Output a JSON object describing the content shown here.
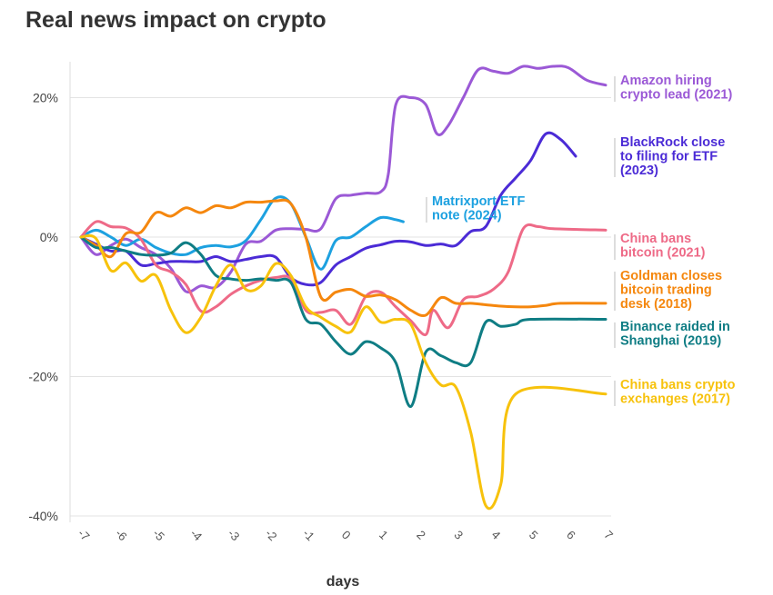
{
  "title": "Real news impact on crypto",
  "chart_data": {
    "type": "line",
    "title": "Real news impact on crypto",
    "xlabel": "days",
    "ylabel": "",
    "xlim": [
      -7,
      7
    ],
    "ylim": [
      -40,
      25
    ],
    "x_ticks": [
      -7,
      -6,
      -5,
      -4,
      -3,
      -2,
      -1,
      0,
      1,
      2,
      3,
      4,
      5,
      6,
      7
    ],
    "y_ticks": [
      20,
      0,
      -20,
      -40
    ],
    "y_tick_labels": [
      "20%",
      "0%",
      "-20%",
      "-40%"
    ],
    "grid": "horizontal",
    "legend": "direct labels at line ends",
    "series": [
      {
        "name": "Amazon hiring crypto lead (2021)",
        "label_lines": [
          "Amazon hiring",
          "crypto lead (2021)"
        ],
        "color": "#9b59d6",
        "points": [
          [
            -7,
            0
          ],
          [
            -6.6,
            -2.5
          ],
          [
            -6.2,
            -1.2
          ],
          [
            -5.8,
            -0.3
          ],
          [
            -5.4,
            -1.5
          ],
          [
            -5,
            -2.5
          ],
          [
            -4.6,
            -4.5
          ],
          [
            -4.2,
            -7.8
          ],
          [
            -3.8,
            -7
          ],
          [
            -3.4,
            -7.2
          ],
          [
            -3,
            -5
          ],
          [
            -2.6,
            -1
          ],
          [
            -2.2,
            -0.6
          ],
          [
            -1.8,
            1
          ],
          [
            -1.4,
            1.2
          ],
          [
            -1,
            1.1
          ],
          [
            -0.6,
            1.2
          ],
          [
            -0.2,
            5.5
          ],
          [
            0.2,
            6
          ],
          [
            0.6,
            6.3
          ],
          [
            1,
            6.5
          ],
          [
            1.2,
            9
          ],
          [
            1.4,
            19
          ],
          [
            1.8,
            20
          ],
          [
            2.2,
            19
          ],
          [
            2.5,
            14.8
          ],
          [
            2.8,
            16
          ],
          [
            3.2,
            20
          ],
          [
            3.6,
            24
          ],
          [
            4,
            23.8
          ],
          [
            4.4,
            23.5
          ],
          [
            4.8,
            24.5
          ],
          [
            5.2,
            24.2
          ],
          [
            5.6,
            24.5
          ],
          [
            6,
            24.3
          ],
          [
            6.5,
            22.5
          ],
          [
            7,
            21.8
          ]
        ]
      },
      {
        "name": "BlackRock close to filing for ETF (2023)",
        "label_lines": [
          "BlackRock close",
          "to filing for ETF",
          "(2023)"
        ],
        "color": "#4b2bd6",
        "points": [
          [
            -7,
            0
          ],
          [
            -6.6,
            -1
          ],
          [
            -6.2,
            -2
          ],
          [
            -5.8,
            -2
          ],
          [
            -5.4,
            -4
          ],
          [
            -5,
            -3.8
          ],
          [
            -4.6,
            -3.5
          ],
          [
            -4.2,
            -3.5
          ],
          [
            -3.8,
            -3.5
          ],
          [
            -3.4,
            -2.8
          ],
          [
            -3,
            -3.5
          ],
          [
            -2.6,
            -3.2
          ],
          [
            -2.2,
            -2.8
          ],
          [
            -1.8,
            -2.9
          ],
          [
            -1.4,
            -5.8
          ],
          [
            -1,
            -6.8
          ],
          [
            -0.6,
            -6.5
          ],
          [
            -0.2,
            -4
          ],
          [
            0.2,
            -2.8
          ],
          [
            0.6,
            -1.6
          ],
          [
            1,
            -1.1
          ],
          [
            1.4,
            -0.6
          ],
          [
            1.8,
            -0.7
          ],
          [
            2.2,
            -1.2
          ],
          [
            2.6,
            -1
          ],
          [
            3,
            -1.2
          ],
          [
            3.4,
            0.8
          ],
          [
            3.8,
            1.5
          ],
          [
            4.2,
            6
          ],
          [
            4.6,
            8.5
          ],
          [
            5,
            11
          ],
          [
            5.4,
            14.8
          ],
          [
            5.8,
            14
          ],
          [
            6.2,
            11.6
          ]
        ]
      },
      {
        "name": "Matrixport ETF note (2024)",
        "label_lines": [
          "Matrixport ETF",
          "note (2024)"
        ],
        "color": "#1da1e0",
        "points": [
          [
            -7,
            0
          ],
          [
            -6.6,
            1
          ],
          [
            -6.2,
            0
          ],
          [
            -5.8,
            -1.2
          ],
          [
            -5.4,
            -0.3
          ],
          [
            -5,
            -1.5
          ],
          [
            -4.6,
            -2.3
          ],
          [
            -4.2,
            -2.5
          ],
          [
            -3.8,
            -1.5
          ],
          [
            -3.4,
            -1.2
          ],
          [
            -3,
            -1.4
          ],
          [
            -2.6,
            -0.5
          ],
          [
            -2.2,
            2.5
          ],
          [
            -1.8,
            5.6
          ],
          [
            -1.4,
            4.8
          ],
          [
            -1,
            0
          ],
          [
            -0.6,
            -4.6
          ],
          [
            -0.2,
            -0.5
          ],
          [
            0.2,
            0
          ],
          [
            0.6,
            1.5
          ],
          [
            1,
            2.8
          ],
          [
            1.4,
            2.5
          ],
          [
            1.6,
            2.2
          ]
        ]
      },
      {
        "name": "China bans bitcoin (2021)",
        "label_lines": [
          "China bans",
          "bitcoin (2021)"
        ],
        "color": "#ee6a87",
        "points": [
          [
            -7,
            0
          ],
          [
            -6.6,
            2.2
          ],
          [
            -6.2,
            1.5
          ],
          [
            -5.8,
            1.3
          ],
          [
            -5.4,
            -0.3
          ],
          [
            -5,
            -4
          ],
          [
            -4.6,
            -5
          ],
          [
            -4.2,
            -6.8
          ],
          [
            -3.8,
            -10.6
          ],
          [
            -3.4,
            -10
          ],
          [
            -3,
            -8.2
          ],
          [
            -2.6,
            -7
          ],
          [
            -2.2,
            -6.2
          ],
          [
            -1.8,
            -5.8
          ],
          [
            -1.4,
            -6
          ],
          [
            -1,
            -10.5
          ],
          [
            -0.6,
            -10.8
          ],
          [
            -0.2,
            -10.5
          ],
          [
            0.2,
            -12.5
          ],
          [
            0.6,
            -8.5
          ],
          [
            1,
            -7.9
          ],
          [
            1.4,
            -10
          ],
          [
            1.8,
            -12
          ],
          [
            2.2,
            -14
          ],
          [
            2.4,
            -10.5
          ],
          [
            2.8,
            -13
          ],
          [
            3.2,
            -9
          ],
          [
            3.6,
            -8.5
          ],
          [
            4,
            -7.5
          ],
          [
            4.4,
            -5
          ],
          [
            4.8,
            1.2
          ],
          [
            5.2,
            1.5
          ],
          [
            5.6,
            1.2
          ],
          [
            7,
            1
          ]
        ]
      },
      {
        "name": "Goldman closes bitcoin trading desk (2018)",
        "label_lines": [
          "Goldman closes",
          "bitcoin trading",
          "desk (2018)"
        ],
        "color": "#f5870e",
        "points": [
          [
            -7,
            0
          ],
          [
            -6.6,
            -1.2
          ],
          [
            -6.2,
            -2.8
          ],
          [
            -5.8,
            0.5
          ],
          [
            -5.4,
            0.7
          ],
          [
            -5,
            3.5
          ],
          [
            -4.6,
            3
          ],
          [
            -4.2,
            4.2
          ],
          [
            -3.8,
            3.5
          ],
          [
            -3.4,
            4.5
          ],
          [
            -3,
            4.2
          ],
          [
            -2.6,
            5
          ],
          [
            -2.2,
            5
          ],
          [
            -1.8,
            5.2
          ],
          [
            -1.4,
            4.8
          ],
          [
            -1,
            0
          ],
          [
            -0.6,
            -8.6
          ],
          [
            -0.2,
            -7.9
          ],
          [
            0.2,
            -7.5
          ],
          [
            0.6,
            -8.5
          ],
          [
            1,
            -8.3
          ],
          [
            1.4,
            -9
          ],
          [
            1.8,
            -10.5
          ],
          [
            2.2,
            -11.2
          ],
          [
            2.6,
            -8.7
          ],
          [
            3,
            -9.5
          ],
          [
            3.4,
            -9.5
          ],
          [
            3.8,
            -9.7
          ],
          [
            4.2,
            -9.9
          ],
          [
            4.6,
            -10
          ],
          [
            5,
            -10
          ],
          [
            5.4,
            -9.8
          ],
          [
            5.8,
            -9.5
          ],
          [
            7,
            -9.5
          ]
        ]
      },
      {
        "name": "Binance raided in Shanghai (2019)",
        "label_lines": [
          "Binance raided in",
          "Shanghai (2019)"
        ],
        "color": "#0f7d84",
        "points": [
          [
            -7,
            0
          ],
          [
            -6.6,
            -1.5
          ],
          [
            -6.2,
            -1.5
          ],
          [
            -5.8,
            -2
          ],
          [
            -5.4,
            -2.5
          ],
          [
            -5,
            -2.6
          ],
          [
            -4.6,
            -2.3
          ],
          [
            -4.2,
            -0.8
          ],
          [
            -3.8,
            -2.5
          ],
          [
            -3.4,
            -5.5
          ],
          [
            -3,
            -6
          ],
          [
            -2.6,
            -6.2
          ],
          [
            -2.2,
            -6
          ],
          [
            -1.8,
            -6.2
          ],
          [
            -1.4,
            -6.5
          ],
          [
            -1,
            -11.8
          ],
          [
            -0.6,
            -12.5
          ],
          [
            -0.2,
            -15
          ],
          [
            0.2,
            -16.8
          ],
          [
            0.6,
            -15
          ],
          [
            1,
            -15.9
          ],
          [
            1.4,
            -18
          ],
          [
            1.8,
            -24.3
          ],
          [
            2.2,
            -16.5
          ],
          [
            2.6,
            -17
          ],
          [
            3,
            -18
          ],
          [
            3.4,
            -18
          ],
          [
            3.8,
            -12.2
          ],
          [
            4.2,
            -12.8
          ],
          [
            4.6,
            -12.5
          ],
          [
            5,
            -11.8
          ],
          [
            7,
            -11.8
          ]
        ]
      },
      {
        "name": "China bans crypto exchanges (2017)",
        "label_lines": [
          "China bans crypto",
          "exchanges (2017)"
        ],
        "color": "#f7c20c",
        "points": [
          [
            -7,
            0
          ],
          [
            -6.6,
            -0.2
          ],
          [
            -6.2,
            -4.8
          ],
          [
            -5.8,
            -3.7
          ],
          [
            -5.4,
            -6.3
          ],
          [
            -5,
            -5.5
          ],
          [
            -4.6,
            -10.5
          ],
          [
            -4.2,
            -13.7
          ],
          [
            -3.8,
            -11.5
          ],
          [
            -3.4,
            -7
          ],
          [
            -3,
            -4
          ],
          [
            -2.6,
            -7.5
          ],
          [
            -2.2,
            -7
          ],
          [
            -1.8,
            -3.8
          ],
          [
            -1.4,
            -5.5
          ],
          [
            -1,
            -10
          ],
          [
            -0.6,
            -11.5
          ],
          [
            -0.2,
            -12.8
          ],
          [
            0.2,
            -13.6
          ],
          [
            0.6,
            -10
          ],
          [
            1,
            -12.2
          ],
          [
            1.4,
            -11.8
          ],
          [
            1.8,
            -12.5
          ],
          [
            2.2,
            -18
          ],
          [
            2.6,
            -21.2
          ],
          [
            3,
            -21.5
          ],
          [
            3.4,
            -28
          ],
          [
            3.8,
            -38.5
          ],
          [
            4.2,
            -35.5
          ],
          [
            4.6,
            -22.5
          ],
          [
            7,
            -22.5
          ]
        ]
      }
    ]
  }
}
